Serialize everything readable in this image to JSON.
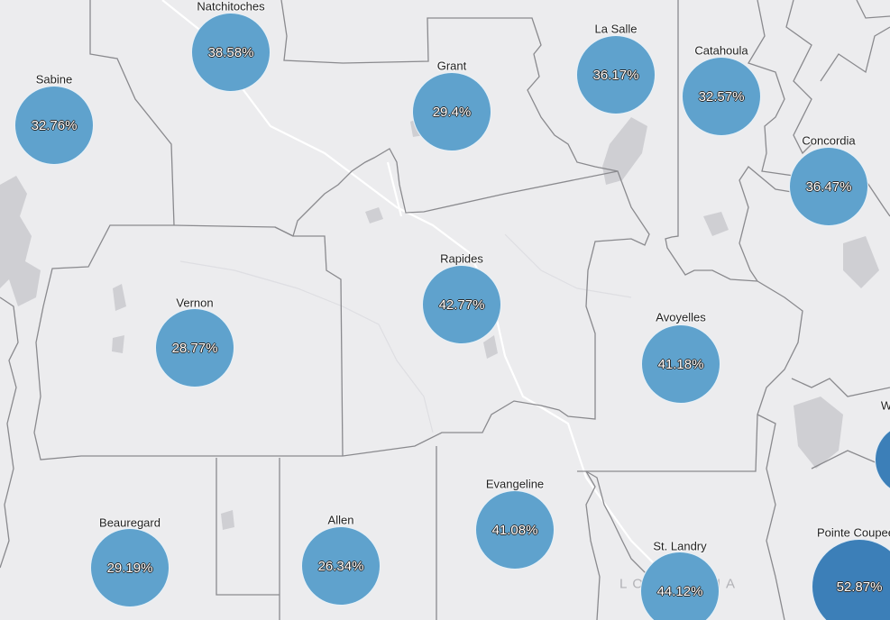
{
  "map": {
    "state_label": "LOUISIANA",
    "colors": {
      "background": "#ececee",
      "boundary": "#8a8a8e",
      "water": "#cfcfd3",
      "road": "#ffffff",
      "bubble_normal": "#5fa2cd",
      "bubble_high": "#3c7fb8"
    }
  },
  "counties": [
    {
      "name": "Natchitoches",
      "value": "38.58%"
    },
    {
      "name": "Sabine",
      "value": "32.76%"
    },
    {
      "name": "Grant",
      "value": "29.4%"
    },
    {
      "name": "La Salle",
      "value": "36.17%"
    },
    {
      "name": "Catahoula",
      "value": "32.57%"
    },
    {
      "name": "Concordia",
      "value": "36.47%"
    },
    {
      "name": "Rapides",
      "value": "42.77%"
    },
    {
      "name": "Vernon",
      "value": "28.77%"
    },
    {
      "name": "Avoyelles",
      "value": "41.18%"
    },
    {
      "name": "Evangeline",
      "value": "41.08%"
    },
    {
      "name": "Beauregard",
      "value": "29.19%"
    },
    {
      "name": "Allen",
      "value": "26.34%"
    },
    {
      "name": "St. Landry",
      "value": "44.12%"
    },
    {
      "name": "Pointe Coupee",
      "value": "52.87%"
    },
    {
      "name": "W",
      "value": ""
    }
  ]
}
